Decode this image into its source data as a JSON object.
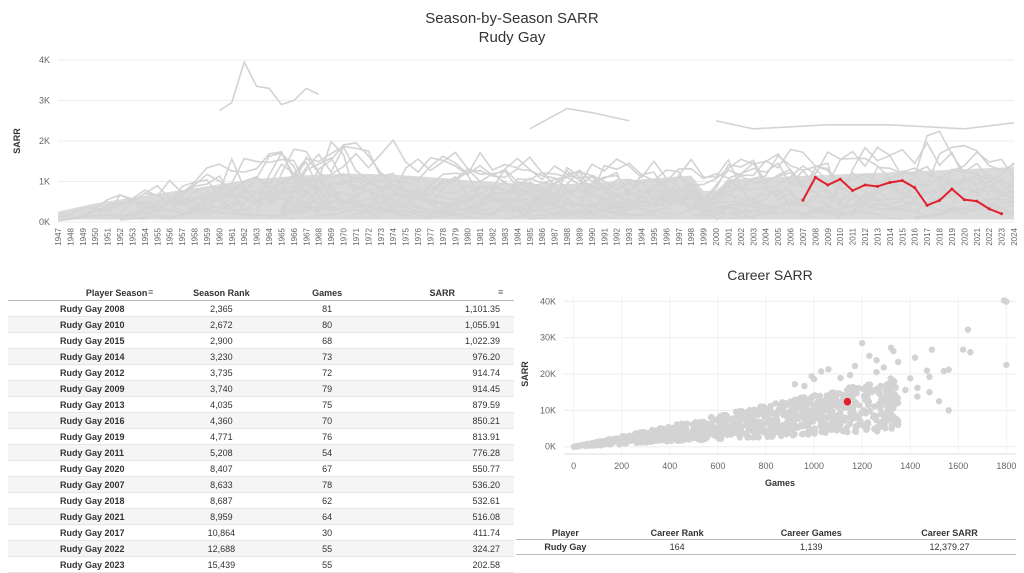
{
  "top_chart": {
    "title": "Season-by-Season SARR",
    "subtitle": "Rudy Gay",
    "ylabel": "SARR"
  },
  "chart_data": [
    {
      "type": "line",
      "title": "Season-by-Season SARR",
      "subtitle": "Rudy Gay",
      "ylabel": "SARR",
      "xlabel": "",
      "xlim": [
        1947,
        2024
      ],
      "ylim": [
        0,
        4000
      ],
      "y_ticks": [
        0,
        1000,
        2000,
        3000,
        4000
      ],
      "y_tick_labels": [
        "0K",
        "1K",
        "2K",
        "3K",
        "4K"
      ],
      "grid": true,
      "highlight_color": "#e0202c",
      "background_color": "#d3d3d3",
      "highlight": {
        "name": "Rudy Gay",
        "x": [
          2007,
          2008,
          2009,
          2010,
          2011,
          2012,
          2013,
          2014,
          2015,
          2016,
          2017,
          2018,
          2019,
          2020,
          2021,
          2022,
          2023
        ],
        "y": [
          536.2,
          1101.35,
          914.45,
          1055.91,
          776.28,
          914.74,
          879.59,
          976.2,
          1022.39,
          850.21,
          411.74,
          532.61,
          813.91,
          550.77,
          516.08,
          324.27,
          202.58
        ]
      }
    },
    {
      "type": "scatter",
      "title": "Career SARR",
      "xlabel": "Games",
      "ylabel": "SARR",
      "xlim": [
        -40,
        1840
      ],
      "ylim": [
        -2000,
        42000
      ],
      "x_ticks": [
        0,
        200,
        400,
        600,
        800,
        1000,
        1200,
        1400,
        1600,
        1800
      ],
      "y_ticks": [
        0,
        10000,
        20000,
        30000,
        40000
      ],
      "y_tick_labels": [
        "0K",
        "10K",
        "20K",
        "30K",
        "40K"
      ],
      "grid": true,
      "highlight_color": "#e0202c",
      "background_color": "#d3d3d3",
      "highlight": {
        "name": "Rudy Gay",
        "x": 1139,
        "y": 12379.27
      },
      "outliers": [
        {
          "x": 1790,
          "y": 40200
        },
        {
          "x": 1800,
          "y": 39900
        },
        {
          "x": 1800,
          "y": 22500
        },
        {
          "x": 1640,
          "y": 32200
        },
        {
          "x": 1620,
          "y": 26700
        },
        {
          "x": 1650,
          "y": 26000
        },
        {
          "x": 1560,
          "y": 21200
        },
        {
          "x": 1540,
          "y": 20800
        },
        {
          "x": 1560,
          "y": 10000
        },
        {
          "x": 1490,
          "y": 26700
        },
        {
          "x": 1470,
          "y": 20900
        },
        {
          "x": 1480,
          "y": 19200
        },
        {
          "x": 1400,
          "y": 18800
        },
        {
          "x": 1430,
          "y": 16200
        },
        {
          "x": 1380,
          "y": 15600
        },
        {
          "x": 1200,
          "y": 28500
        },
        {
          "x": 1170,
          "y": 22200
        },
        {
          "x": 1330,
          "y": 26300
        },
        {
          "x": 1320,
          "y": 27200
        },
        {
          "x": 1230,
          "y": 25000
        },
        {
          "x": 1260,
          "y": 23800
        },
        {
          "x": 1030,
          "y": 20700
        },
        {
          "x": 1060,
          "y": 21300
        },
        {
          "x": 990,
          "y": 19400
        },
        {
          "x": 1000,
          "y": 18600
        },
        {
          "x": 960,
          "y": 16700
        },
        {
          "x": 920,
          "y": 17200
        },
        {
          "x": 1110,
          "y": 18900
        },
        {
          "x": 1150,
          "y": 19700
        },
        {
          "x": 1260,
          "y": 20500
        },
        {
          "x": 1290,
          "y": 21800
        },
        {
          "x": 1350,
          "y": 23300
        },
        {
          "x": 1420,
          "y": 24500
        },
        {
          "x": 1480,
          "y": 15000
        },
        {
          "x": 1430,
          "y": 13800
        },
        {
          "x": 1520,
          "y": 12500
        }
      ]
    }
  ],
  "season_table": {
    "headers": [
      "Player Season",
      "Season Rank",
      "Games",
      "SARR"
    ],
    "rows": [
      [
        "Rudy Gay 2008",
        "2,365",
        "81",
        "1,101.35"
      ],
      [
        "Rudy Gay 2010",
        "2,672",
        "80",
        "1,055.91"
      ],
      [
        "Rudy Gay 2015",
        "2,900",
        "68",
        "1,022.39"
      ],
      [
        "Rudy Gay 2014",
        "3,230",
        "73",
        "976.20"
      ],
      [
        "Rudy Gay 2012",
        "3,735",
        "72",
        "914.74"
      ],
      [
        "Rudy Gay 2009",
        "3,740",
        "79",
        "914.45"
      ],
      [
        "Rudy Gay 2013",
        "4,035",
        "75",
        "879.59"
      ],
      [
        "Rudy Gay 2016",
        "4,360",
        "70",
        "850.21"
      ],
      [
        "Rudy Gay 2019",
        "4,771",
        "76",
        "813.91"
      ],
      [
        "Rudy Gay 2011",
        "5,208",
        "54",
        "776.28"
      ],
      [
        "Rudy Gay 2020",
        "8,407",
        "67",
        "550.77"
      ],
      [
        "Rudy Gay 2007",
        "8,633",
        "78",
        "536.20"
      ],
      [
        "Rudy Gay 2018",
        "8,687",
        "62",
        "532.61"
      ],
      [
        "Rudy Gay 2021",
        "8,959",
        "64",
        "516.08"
      ],
      [
        "Rudy Gay 2017",
        "10,864",
        "30",
        "411.74"
      ],
      [
        "Rudy Gay 2022",
        "12,688",
        "55",
        "324.27"
      ],
      [
        "Rudy Gay 2023",
        "15,439",
        "55",
        "202.58"
      ]
    ]
  },
  "career_table": {
    "headers": [
      "Player",
      "Career Rank",
      "Career Games",
      "Career SARR"
    ],
    "row": [
      "Rudy Gay",
      "164",
      "1,139",
      "12,379.27"
    ]
  },
  "icons": {
    "sort": "sort-descending-icon"
  }
}
